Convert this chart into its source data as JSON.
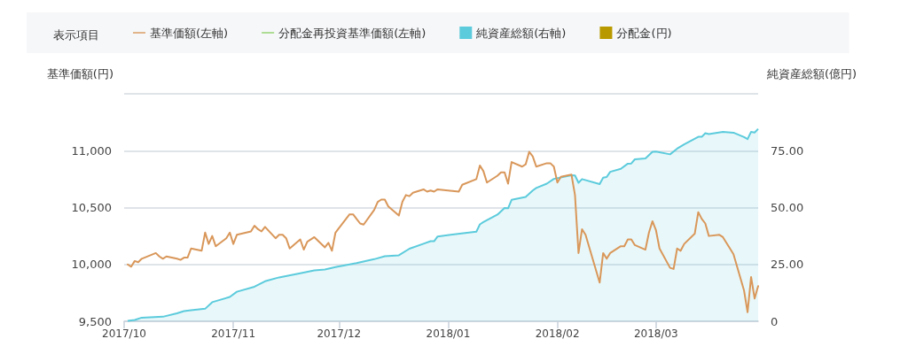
{
  "chart_data": {
    "type": "line",
    "legend_title": "表示項目",
    "ylabel": "基準価額(円)",
    "y2label": "純資産総額(億円)",
    "legend": "top",
    "grid": "y",
    "xlim": [
      "2017-10-01",
      "2018-03-30"
    ],
    "xticks": [
      {
        "value": "2017-10-01",
        "label": "2017/10"
      },
      {
        "value": "2017-11-01",
        "label": "2017/11"
      },
      {
        "value": "2017-12-01",
        "label": "2017/12"
      },
      {
        "value": "2018-01-01",
        "label": "2018/01"
      },
      {
        "value": "2018-02-01",
        "label": "2018/02"
      },
      {
        "value": "2018-03-01",
        "label": "2018/03"
      }
    ],
    "ylim": [
      9500,
      11500
    ],
    "yticks": [
      {
        "value": 9500,
        "label": "9,500"
      },
      {
        "value": 10000,
        "label": "10,000"
      },
      {
        "value": 10500,
        "label": "10,500"
      },
      {
        "value": 11000,
        "label": "11,000"
      },
      {
        "value": 11500,
        "label": null
      }
    ],
    "y2lim": [
      0,
      100
    ],
    "y2ticks": [
      0,
      {
        "value": 25,
        "label": "25.00"
      },
      {
        "value": 50,
        "label": "50.00"
      },
      {
        "value": 75,
        "label": "75.00"
      },
      {
        "value": 100,
        "label": null
      }
    ],
    "series": [
      {
        "name": "純資産総額(右軸)",
        "type": "area",
        "axis": "y2",
        "color": "#5ccbdc",
        "x": [
          "2017-10-02",
          "2017-10-04",
          "2017-10-06",
          "2017-10-12",
          "2017-10-16",
          "2017-10-18",
          "2017-10-20",
          "2017-10-24",
          "2017-10-26",
          "2017-10-31",
          "2017-11-02",
          "2017-11-07",
          "2017-11-10",
          "2017-11-14",
          "2017-11-20",
          "2017-11-24",
          "2017-11-27",
          "2017-11-30",
          "2017-12-04",
          "2017-12-06",
          "2017-12-11",
          "2017-12-14",
          "2017-12-18",
          "2017-12-21",
          "2017-12-25",
          "2017-12-27",
          "2017-12-28",
          "2017-12-29",
          "2018-01-09",
          "2018-01-10",
          "2018-01-11",
          "2018-01-15",
          "2018-01-17",
          "2018-01-18",
          "2018-01-19",
          "2018-01-23",
          "2018-01-25",
          "2018-01-26",
          "2018-01-29",
          "2018-01-31",
          "2018-02-05",
          "2018-02-06",
          "2018-02-07",
          "2018-02-08",
          "2018-02-13",
          "2018-02-14",
          "2018-02-15",
          "2018-02-16",
          "2018-02-19",
          "2018-02-21",
          "2018-02-22",
          "2018-02-23",
          "2018-02-26",
          "2018-02-28",
          "2018-03-01",
          "2018-03-05",
          "2018-03-07",
          "2018-03-09",
          "2018-03-13",
          "2018-03-14",
          "2018-03-15",
          "2018-03-16",
          "2018-03-20",
          "2018-03-23",
          "2018-03-26",
          "2018-03-27",
          "2018-03-28",
          "2018-03-29",
          "2018-03-30"
        ],
        "values": [
          0.2,
          0.6,
          1.6,
          2.0,
          3.5,
          4.5,
          4.9,
          5.5,
          8.4,
          10.7,
          13.0,
          15.2,
          17.6,
          19.3,
          21.1,
          22.4,
          22.8,
          23.8,
          25.0,
          25.6,
          27.3,
          28.6,
          29.0,
          31.9,
          34.1,
          35.2,
          35.2,
          37.3,
          39.4,
          42.6,
          43.6,
          46.9,
          49.8,
          49.7,
          53.4,
          54.7,
          57.5,
          58.6,
          60.5,
          62.6,
          64.2,
          64.1,
          60.9,
          62.5,
          60.3,
          63.1,
          63.4,
          65.7,
          67.0,
          69.3,
          69.4,
          71.2,
          71.6,
          74.5,
          74.6,
          73.4,
          75.9,
          77.8,
          81.1,
          81.1,
          82.7,
          82.3,
          83.3,
          82.9,
          81.0,
          80.1,
          83.3,
          83.0,
          84.6
        ]
      },
      {
        "name": "基準価額(左軸)",
        "color": "#d9975a",
        "x": [
          "2017-10-02",
          "2017-10-03",
          "2017-10-04",
          "2017-10-05",
          "2017-10-06",
          "2017-10-10",
          "2017-10-11",
          "2017-10-12",
          "2017-10-13",
          "2017-10-16",
          "2017-10-17",
          "2017-10-18",
          "2017-10-19",
          "2017-10-20",
          "2017-10-23",
          "2017-10-24",
          "2017-10-25",
          "2017-10-26",
          "2017-10-27",
          "2017-10-30",
          "2017-10-31",
          "2017-11-01",
          "2017-11-02",
          "2017-11-06",
          "2017-11-07",
          "2017-11-08",
          "2017-11-09",
          "2017-11-10",
          "2017-11-13",
          "2017-11-14",
          "2017-11-15",
          "2017-11-16",
          "2017-11-17",
          "2017-11-20",
          "2017-11-21",
          "2017-11-22",
          "2017-11-24",
          "2017-11-27",
          "2017-11-28",
          "2017-11-29",
          "2017-11-30",
          "2017-12-01",
          "2017-12-04",
          "2017-12-05",
          "2017-12-06",
          "2017-12-07",
          "2017-12-08",
          "2017-12-11",
          "2017-12-12",
          "2017-12-13",
          "2017-12-14",
          "2017-12-15",
          "2017-12-18",
          "2017-12-19",
          "2017-12-20",
          "2017-12-21",
          "2017-12-22",
          "2017-12-25",
          "2017-12-26",
          "2017-12-27",
          "2017-12-28",
          "2017-12-29",
          "2018-01-04",
          "2018-01-05",
          "2018-01-09",
          "2018-01-10",
          "2018-01-11",
          "2018-01-12",
          "2018-01-15",
          "2018-01-16",
          "2018-01-17",
          "2018-01-18",
          "2018-01-19",
          "2018-01-22",
          "2018-01-23",
          "2018-01-24",
          "2018-01-25",
          "2018-01-26",
          "2018-01-29",
          "2018-01-30",
          "2018-01-31",
          "2018-02-01",
          "2018-02-02",
          "2018-02-05",
          "2018-02-06",
          "2018-02-07",
          "2018-02-08",
          "2018-02-09",
          "2018-02-13",
          "2018-02-14",
          "2018-02-15",
          "2018-02-16",
          "2018-02-19",
          "2018-02-20",
          "2018-02-21",
          "2018-02-22",
          "2018-02-23",
          "2018-02-26",
          "2018-02-27",
          "2018-02-28",
          "2018-03-01",
          "2018-03-02",
          "2018-03-05",
          "2018-03-06",
          "2018-03-07",
          "2018-03-08",
          "2018-03-09",
          "2018-03-12",
          "2018-03-13",
          "2018-03-14",
          "2018-03-15",
          "2018-03-16",
          "2018-03-19",
          "2018-03-20",
          "2018-03-22",
          "2018-03-23",
          "2018-03-26",
          "2018-03-27",
          "2018-03-28",
          "2018-03-29",
          "2018-03-30"
        ],
        "values": [
          10000,
          9980,
          10030,
          10020,
          10050,
          10100,
          10070,
          10050,
          10070,
          10050,
          10040,
          10060,
          10060,
          10140,
          10120,
          10280,
          10180,
          10250,
          10160,
          10230,
          10280,
          10180,
          10260,
          10290,
          10340,
          10310,
          10290,
          10330,
          10230,
          10260,
          10260,
          10230,
          10140,
          10220,
          10130,
          10200,
          10240,
          10150,
          10190,
          10120,
          10280,
          10320,
          10440,
          10440,
          10400,
          10360,
          10350,
          10480,
          10550,
          10570,
          10570,
          10510,
          10430,
          10550,
          10610,
          10600,
          10630,
          10660,
          10640,
          10650,
          10640,
          10660,
          10640,
          10700,
          10750,
          10870,
          10820,
          10720,
          10780,
          10810,
          10810,
          10710,
          10900,
          10860,
          10880,
          10990,
          10950,
          10860,
          10890,
          10890,
          10860,
          10720,
          10770,
          10790,
          10610,
          10100,
          10310,
          10260,
          9840,
          10100,
          10050,
          10100,
          10160,
          10160,
          10220,
          10220,
          10170,
          10130,
          10280,
          10380,
          10300,
          10140,
          9970,
          9960,
          10140,
          10120,
          10180,
          10270,
          10460,
          10400,
          10360,
          10250,
          10260,
          10240,
          10140,
          10090,
          9770,
          9580,
          9890,
          9700,
          9810
        ]
      },
      {
        "name": "分配金再投資基準価額(左軸)",
        "type": "line",
        "color": "#8fd16a"
      },
      {
        "name": "分配金(円)",
        "type": "bar",
        "color": "#b89a00"
      }
    ]
  }
}
